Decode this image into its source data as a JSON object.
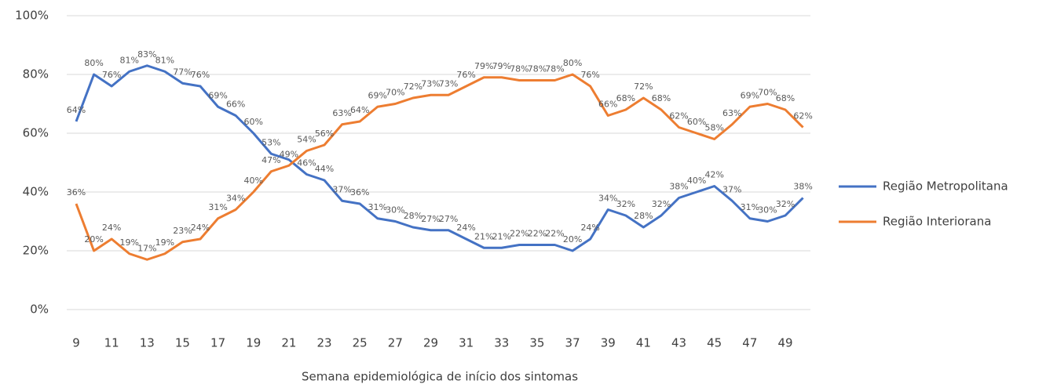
{
  "chart_data": {
    "type": "line",
    "x_label": "Semana epidemiológica de início dos sintomas",
    "categories": [
      "9",
      null,
      "11",
      null,
      "13",
      null,
      "15",
      null,
      "17",
      null,
      "19",
      null,
      "21",
      null,
      "23",
      null,
      "25",
      null,
      "27",
      null,
      "29",
      null,
      "31",
      null,
      "33",
      null,
      "35",
      null,
      "37",
      null,
      "39",
      null,
      "41",
      null,
      "43",
      null,
      "45",
      null,
      "47",
      null,
      "49",
      null
    ],
    "ylim": [
      0,
      100
    ],
    "yticks": [
      {
        "value": 0,
        "label": "0%"
      },
      {
        "value": 20,
        "label": "20%"
      },
      {
        "value": 40,
        "label": "40%"
      },
      {
        "value": 60,
        "label": "60%"
      },
      {
        "value": 80,
        "label": "80%"
      },
      {
        "value": 100,
        "label": "100%"
      }
    ],
    "grid": true,
    "legend": "right",
    "series": [
      {
        "name": "Região Metropolitana",
        "color": "#4472c4",
        "values": [
          64,
          80,
          76,
          81,
          83,
          81,
          77,
          76,
          69,
          66,
          60,
          53,
          51,
          46,
          44,
          37,
          36,
          31,
          30,
          28,
          27,
          27,
          24,
          21,
          21,
          22,
          22,
          22,
          20,
          24,
          34,
          32,
          28,
          32,
          38,
          40,
          42,
          37,
          31,
          30,
          32,
          38
        ],
        "value_labels": [
          "64%",
          "80%",
          "76%",
          "81%",
          "83%",
          "81%",
          "77%",
          "76%",
          "69%",
          "66%",
          "60%",
          "53%",
          null,
          "46%",
          "44%",
          "37%",
          "36%",
          "31%",
          "30%",
          "28%",
          "27%",
          "27%",
          "24%",
          "21%",
          "21%",
          "22%",
          "22%",
          "22%",
          "20%",
          "24%",
          "34%",
          "32%",
          "28%",
          "32%",
          "38%",
          "40%",
          "42%",
          "37%",
          "31%",
          "30%",
          "32%",
          "38%"
        ]
      },
      {
        "name": "Região Interiorana",
        "color": "#ed7d31",
        "values": [
          36,
          20,
          24,
          19,
          17,
          19,
          23,
          24,
          31,
          34,
          40,
          47,
          49,
          54,
          56,
          63,
          64,
          69,
          70,
          72,
          73,
          73,
          76,
          79,
          79,
          78,
          78,
          78,
          80,
          76,
          66,
          68,
          72,
          68,
          62,
          60,
          58,
          63,
          69,
          70,
          68,
          62
        ],
        "value_labels": [
          "36%",
          "20%",
          "24%",
          "19%",
          "17%",
          "19%",
          "23%",
          "24%",
          "31%",
          "34%",
          "40%",
          "47%",
          "49%",
          "54%",
          "56%",
          "63%",
          "64%",
          "69%",
          "70%",
          "72%",
          "73%",
          "73%",
          "76%",
          "79%",
          "79%",
          "78%",
          "78%",
          "78%",
          "80%",
          "76%",
          "66%",
          "68%",
          "72%",
          "68%",
          "62%",
          "60%",
          "58%",
          "63%",
          "69%",
          "70%",
          "68%",
          "62%"
        ]
      }
    ]
  }
}
